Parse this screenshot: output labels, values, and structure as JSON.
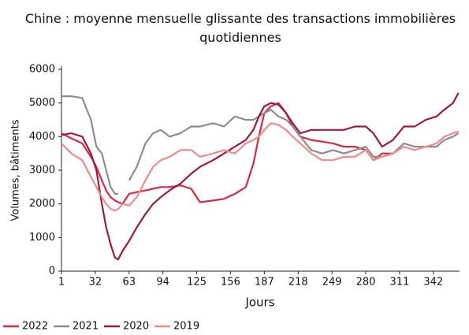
{
  "chart_data": {
    "type": "line",
    "title": "Chine : moyenne mensuelle glissante des transactions immobilières quotidiennes",
    "x_label": "Jours",
    "y_label": "Volumes, bâtiments",
    "x": [
      1,
      10,
      20,
      28,
      33,
      38,
      42,
      46,
      50,
      53,
      57,
      63,
      70,
      78,
      85,
      92,
      100,
      110,
      120,
      128,
      140,
      150,
      160,
      170,
      177,
      182,
      187,
      193,
      200,
      207,
      213,
      220,
      230,
      240,
      250,
      260,
      270,
      280,
      287,
      295,
      305,
      315,
      325,
      335,
      345,
      352,
      360,
      365
    ],
    "series": [
      {
        "name": "2022",
        "color": "#d42a44",
        "values": [
          4100,
          3950,
          3800,
          3400,
          3100,
          2700,
          2400,
          2200,
          2100,
          2050,
          2000,
          2300,
          2350,
          2400,
          2450,
          2500,
          2500,
          2550,
          2450,
          2050,
          2100,
          2150,
          2300,
          2500,
          3200,
          4000,
          4700,
          4900,
          5000,
          4700,
          4300,
          4000,
          3900,
          3850,
          3800,
          3700,
          3700,
          3600,
          3300,
          3500,
          3500,
          null,
          null,
          null,
          null,
          null,
          null,
          null
        ]
      },
      {
        "name": "2021",
        "color": "#8c8c8c",
        "values": [
          5200,
          5200,
          5150,
          4500,
          3700,
          3500,
          3000,
          2500,
          2300,
          2300,
          null,
          2700,
          3100,
          3800,
          4100,
          4200,
          4000,
          4100,
          4300,
          4300,
          4400,
          4300,
          4600,
          4500,
          4500,
          4600,
          4700,
          4800,
          4600,
          4500,
          4300,
          4000,
          3600,
          3500,
          3600,
          3500,
          3600,
          3700,
          3400,
          3400,
          3500,
          3800,
          3700,
          3700,
          3700,
          3900,
          4000,
          4100
        ]
      },
      {
        "name": "2020",
        "color": "#9b1b3f",
        "values": [
          4050,
          4100,
          4000,
          3500,
          3000,
          2000,
          1300,
          800,
          400,
          350,
          600,
          900,
          1300,
          1700,
          2000,
          2200,
          2400,
          2600,
          2900,
          3100,
          3300,
          3500,
          3700,
          3900,
          4200,
          4600,
          4900,
          5000,
          4950,
          4700,
          4400,
          4100,
          4200,
          4200,
          4200,
          4200,
          4300,
          4300,
          4100,
          3700,
          3900,
          4300,
          4300,
          4500,
          4600,
          4800,
          5000,
          5300
        ]
      },
      {
        "name": "2019",
        "color": "#f28a8a",
        "values": [
          3800,
          3500,
          3300,
          2800,
          2500,
          2200,
          2000,
          1850,
          1800,
          1850,
          2000,
          1950,
          2200,
          2700,
          3100,
          3300,
          3400,
          3600,
          3600,
          3400,
          3500,
          3600,
          3500,
          3800,
          3900,
          4000,
          4200,
          4400,
          4350,
          4200,
          4000,
          3800,
          3500,
          3300,
          3300,
          3400,
          3400,
          3600,
          3300,
          3400,
          3500,
          3700,
          3600,
          3700,
          3800,
          4000,
          4100,
          4150
        ]
      }
    ],
    "xlim": [
      1,
      366
    ],
    "xticks": [
      1,
      32,
      63,
      94,
      125,
      156,
      187,
      218,
      249,
      280,
      311,
      342
    ],
    "ylim": [
      0,
      6000
    ],
    "yticks": [
      0,
      1000,
      2000,
      3000,
      4000,
      5000,
      6000
    ],
    "grid": false,
    "legend": "bottom-left"
  }
}
